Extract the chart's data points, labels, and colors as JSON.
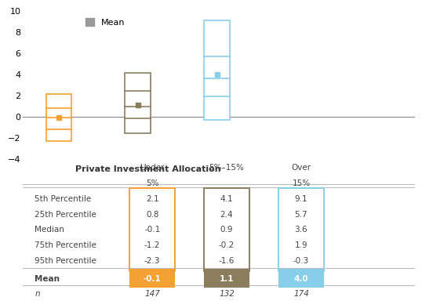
{
  "row_labels": [
    "5th Percentile",
    "25th Percentile",
    "Median",
    "75th Percentile",
    "95th Percentile"
  ],
  "table_data": [
    [
      2.1,
      4.1,
      9.1
    ],
    [
      0.8,
      2.4,
      5.7
    ],
    [
      -0.1,
      0.9,
      3.6
    ],
    [
      -1.2,
      -0.2,
      1.9
    ],
    [
      -2.3,
      -1.6,
      -0.3
    ]
  ],
  "mean_data": [
    -0.1,
    1.1,
    4.0
  ],
  "n_data": [
    147,
    132,
    174
  ],
  "box_colors": [
    "#F5A033",
    "#8B7D5E",
    "#87CEEB"
  ],
  "box_edge_colors": [
    "#F5A033",
    "#8B7D5E",
    "#87CEEB"
  ],
  "mean_fill_colors": [
    "#F5A033",
    "#8B7D5E",
    "#87CEEB"
  ],
  "percentile_5": [
    2.1,
    4.1,
    9.1
  ],
  "percentile_25": [
    0.8,
    2.4,
    5.7
  ],
  "median": [
    -0.1,
    0.9,
    3.6
  ],
  "percentile_75": [
    -1.2,
    -0.2,
    1.9
  ],
  "percentile_95": [
    -2.3,
    -1.6,
    -0.3
  ],
  "mean_vals": [
    -0.1,
    1.1,
    4.0
  ],
  "ylim": [
    -4,
    10
  ],
  "yticks": [
    -4,
    -2,
    0,
    2,
    4,
    6,
    8,
    10
  ],
  "legend_mean_color": "#999999",
  "xlabel": "Private Investment Allocation",
  "background_color": "#ffffff"
}
